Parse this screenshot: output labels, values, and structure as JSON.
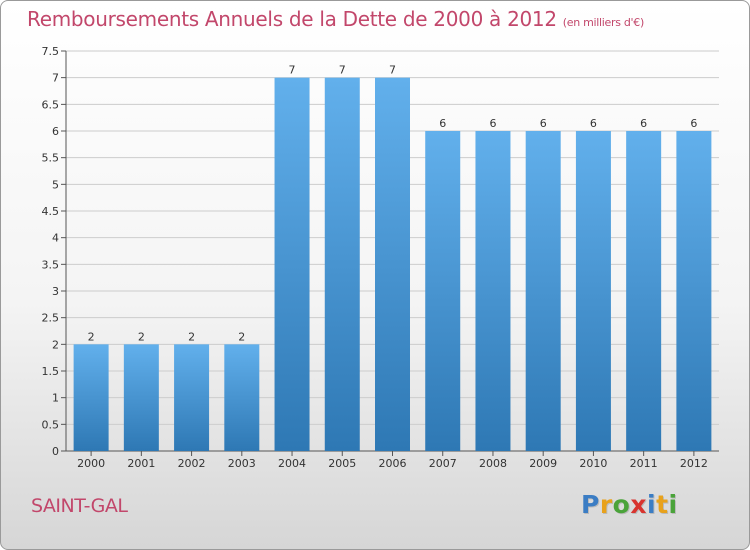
{
  "header": {
    "title": "Remboursements Annuels de la Dette de 2000 à 2012",
    "unit": "(en milliers d'€)"
  },
  "footer": {
    "commune": "SAINT-GAL",
    "logo_letters": [
      {
        "ch": "P",
        "color": "#3b7dc4"
      },
      {
        "ch": "r",
        "color": "#e8a21c"
      },
      {
        "ch": "o",
        "color": "#4aa33a"
      },
      {
        "ch": "x",
        "color": "#d8342f"
      },
      {
        "ch": "i",
        "color": "#3b7dc4"
      },
      {
        "ch": "t",
        "color": "#e8a21c"
      },
      {
        "ch": "i",
        "color": "#4aa33a"
      }
    ]
  },
  "colors": {
    "bar_top": "#62b0ec",
    "bar_bottom": "#2e78b4",
    "title": "#c2476b",
    "grid": "#cccccc"
  },
  "chart_data": {
    "type": "bar",
    "title": "Remboursements Annuels de la Dette de 2000 à 2012",
    "xlabel": "",
    "ylabel": "",
    "categories": [
      "2000",
      "2001",
      "2002",
      "2003",
      "2004",
      "2005",
      "2006",
      "2007",
      "2008",
      "2009",
      "2010",
      "2011",
      "2012"
    ],
    "values": [
      2,
      2,
      2,
      2,
      7,
      7,
      7,
      6,
      6,
      6,
      6,
      6,
      6
    ],
    "ylim": [
      0,
      7.5
    ],
    "yticks": [
      0,
      0.5,
      1,
      1.5,
      2,
      2.5,
      3,
      3.5,
      4,
      4.5,
      5,
      5.5,
      6,
      6.5,
      7,
      7.5
    ],
    "ytick_labels": [
      "0",
      "0.5",
      "1",
      "1.5",
      "2",
      "2.5",
      "3",
      "3.5",
      "4",
      "4.5",
      "5",
      "5.5",
      "6",
      "6.5",
      "7",
      "7.5"
    ],
    "grid": true,
    "data_labels": true
  }
}
